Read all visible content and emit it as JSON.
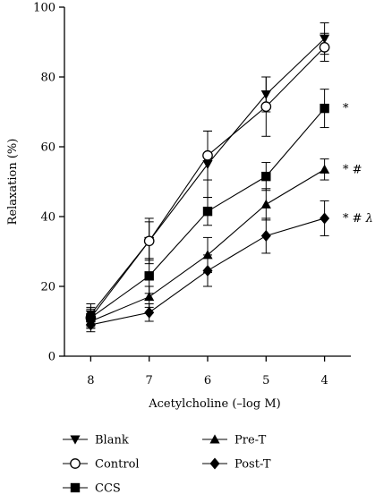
{
  "chart_data": {
    "type": "line",
    "title": "",
    "xlabel": "Acetylcholine (–log M)",
    "ylabel": "Relaxation (%)",
    "x": [
      8,
      7,
      6,
      5,
      4
    ],
    "x_tick_labels": [
      "8",
      "7",
      "6",
      "5",
      "4"
    ],
    "xlim": [
      8.45,
      3.55
    ],
    "ylim": [
      0,
      100
    ],
    "y_ticks": [
      0,
      20,
      40,
      60,
      80,
      100
    ],
    "y_tick_labels": [
      "0",
      "20",
      "40",
      "60",
      "80",
      "100"
    ],
    "grid": false,
    "legend_position": "bottom",
    "series": [
      {
        "name": "Blank",
        "marker": "triangle-down",
        "values": [
          12,
          33,
          55,
          75,
          91
        ],
        "errors": [
          3,
          6.5,
          9.5,
          5,
          4.5
        ],
        "end_annotation": ""
      },
      {
        "name": "Control",
        "marker": "circle-open",
        "values": [
          11,
          33,
          57.5,
          71.5,
          88.5
        ],
        "errors": [
          3,
          5.5,
          7,
          8.5,
          4
        ],
        "end_annotation": ""
      },
      {
        "name": "CCS",
        "marker": "square",
        "values": [
          11,
          23,
          41.5,
          51.5,
          71
        ],
        "errors": [
          2.5,
          5,
          4,
          4,
          5.5
        ],
        "end_annotation": "*"
      },
      {
        "name": "Pre-T",
        "marker": "triangle-up",
        "values": [
          10,
          17,
          29,
          43.5,
          53.5
        ],
        "errors": [
          2,
          3,
          5,
          4.5,
          3
        ],
        "end_annotation": "* #"
      },
      {
        "name": "Post-T",
        "marker": "diamond",
        "values": [
          9,
          12.5,
          24.5,
          34.5,
          39.5
        ],
        "errors": [
          2,
          2.5,
          4.5,
          5,
          5
        ],
        "end_annotation": "* # λ"
      }
    ]
  }
}
